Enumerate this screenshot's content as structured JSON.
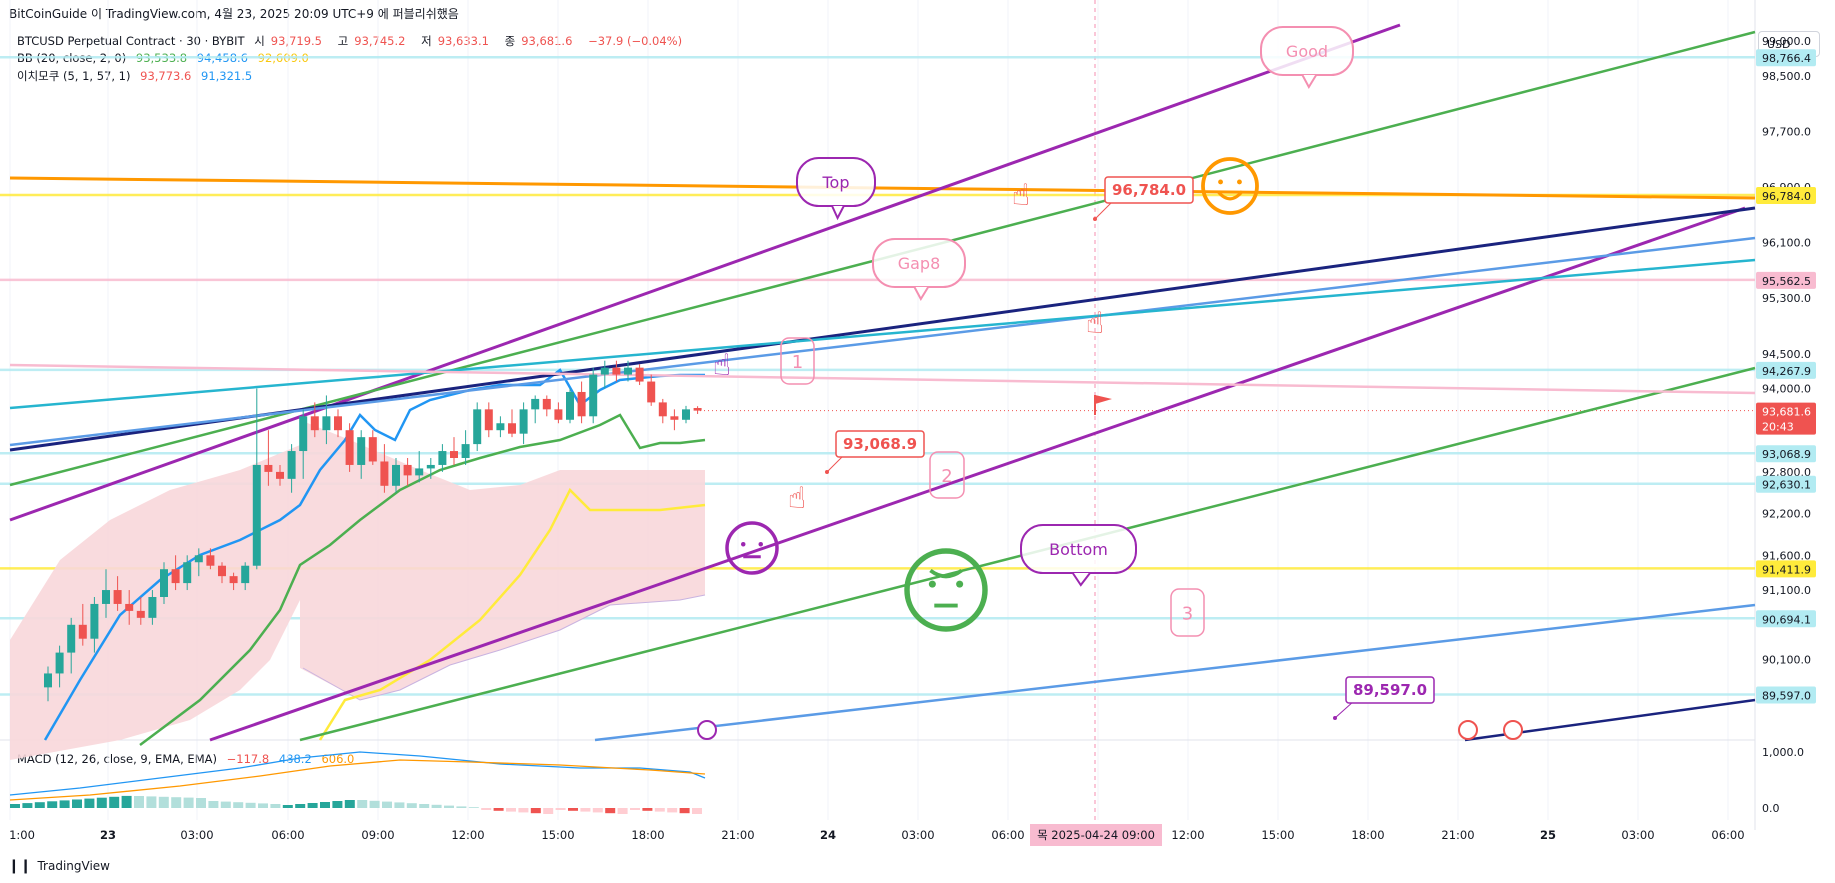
{
  "header": {
    "caption": "BitCoinGuide 이 TradingView.com, 4월 23, 2025 20:09 UTC+9 에 퍼블리쉬했음",
    "symbol": "BTCUSD Perpetual Contract · 30 · BYBIT",
    "ohlc": [
      {
        "label": "시",
        "value": "93,719.5"
      },
      {
        "label": "고",
        "value": "93,745.2"
      },
      {
        "label": "저",
        "value": "93,633.1"
      },
      {
        "label": "종",
        "value": "93,681.6"
      }
    ],
    "change": "−37.9 (−0.04%)",
    "bb_label": "BB (20, close, 2, 0)",
    "bb_values": [
      "93,533.8",
      "94,458.6",
      "92,609.0"
    ],
    "ichimoku_label": "이치모쿠 (5, 1, 57, 1)",
    "ichimoku_values": [
      "93,773.6",
      "91,321.5"
    ],
    "macd_label": "MACD (12, 26, close, 9, EMA, EMA)",
    "macd_values": [
      "−117.8",
      "488.2",
      "606.0"
    ],
    "currency": "USD"
  },
  "footer": {
    "brand": "TradingView"
  },
  "colors": {
    "up": "#26a69a",
    "down": "#ef5350",
    "bb_basis": "#4caf50",
    "bb_upper": "#2196f3",
    "bb_lower": "#ffeb3b",
    "cloud": "#f8d7da",
    "orange": "#ff9800",
    "purple": "#9c27b0",
    "navy": "#1a237e",
    "lightblue": "#5b9be6",
    "cyan": "#26b5cf",
    "green": "#4caf50",
    "pink": "#f48fb1"
  },
  "chart_data": {
    "type": "candlestick",
    "title": "BTCUSD Perpetual Contract · 30 · BYBIT",
    "y_ticks": [
      "99,000.0",
      "98,500.0",
      "97,700.0",
      "96,900.0",
      "96,100.0",
      "95,300.0",
      "94,500.0",
      "94,000.0",
      "92,800.0",
      "92,200.0",
      "91,600.0",
      "91,100.0",
      "90,100.0"
    ],
    "x_ticks": [
      "1:00",
      "23",
      "03:00",
      "06:00",
      "09:00",
      "12:00",
      "15:00",
      "18:00",
      "21:00",
      "24",
      "03:00",
      "06:00",
      "09:00",
      "12:00",
      "15:00",
      "18:00",
      "21:00",
      "25",
      "03:00",
      "06:00"
    ],
    "crosshair_date": "목 2025-04-24  09:00",
    "price_labels": [
      {
        "text": "98,766.4",
        "price": 98766.4,
        "color": "#b2ebf2",
        "fg": "#131722"
      },
      {
        "text": "96,784.0",
        "price": 96784.0,
        "color": "#ffeb3b",
        "fg": "#131722"
      },
      {
        "text": "95,562.5",
        "price": 95562.5,
        "color": "#f8bbd0",
        "fg": "#131722"
      },
      {
        "text": "94,267.9",
        "price": 94267.9,
        "color": "#b2ebf2",
        "fg": "#131722"
      },
      {
        "text": "93,681.6",
        "price": 93681.6,
        "color": "#ef5350",
        "fg": "#ffffff"
      },
      {
        "text": "93,068.9",
        "price": 93068.9,
        "color": "#b2ebf2",
        "fg": "#131722"
      },
      {
        "text": "92,630.1",
        "price": 92630.1,
        "color": "#b2ebf2",
        "fg": "#131722"
      },
      {
        "text": "91,411.9",
        "price": 91411.9,
        "color": "#ffeb3b",
        "fg": "#131722"
      },
      {
        "text": "90,694.1",
        "price": 90694.1,
        "color": "#b2ebf2",
        "fg": "#131722"
      },
      {
        "text": "89,597.0",
        "price": 89597.0,
        "color": "#b2ebf2",
        "fg": "#131722"
      }
    ],
    "countdown": "20:43",
    "macd_ticks": [
      "1,000.0",
      "0.0"
    ],
    "candles": [
      {
        "o": 89700,
        "h": 90000,
        "l": 89500,
        "c": 89900
      },
      {
        "o": 89900,
        "h": 90300,
        "l": 89700,
        "c": 90200
      },
      {
        "o": 90200,
        "h": 90700,
        "l": 89900,
        "c": 90600
      },
      {
        "o": 90600,
        "h": 90900,
        "l": 90300,
        "c": 90400
      },
      {
        "o": 90400,
        "h": 91000,
        "l": 90200,
        "c": 90900
      },
      {
        "o": 90900,
        "h": 91400,
        "l": 90700,
        "c": 91100
      },
      {
        "o": 91100,
        "h": 91300,
        "l": 90800,
        "c": 90900
      },
      {
        "o": 90900,
        "h": 91100,
        "l": 90600,
        "c": 90800
      },
      {
        "o": 90800,
        "h": 91000,
        "l": 90600,
        "c": 90700
      },
      {
        "o": 90700,
        "h": 91100,
        "l": 90600,
        "c": 91000
      },
      {
        "o": 91000,
        "h": 91500,
        "l": 90900,
        "c": 91400
      },
      {
        "o": 91400,
        "h": 91600,
        "l": 91100,
        "c": 91200
      },
      {
        "o": 91200,
        "h": 91600,
        "l": 91100,
        "c": 91500
      },
      {
        "o": 91500,
        "h": 91700,
        "l": 91300,
        "c": 91600
      },
      {
        "o": 91600,
        "h": 91700,
        "l": 91400,
        "c": 91450
      },
      {
        "o": 91450,
        "h": 91500,
        "l": 91200,
        "c": 91300
      },
      {
        "o": 91300,
        "h": 91350,
        "l": 91100,
        "c": 91200
      },
      {
        "o": 91200,
        "h": 91500,
        "l": 91100,
        "c": 91450
      },
      {
        "o": 91450,
        "h": 94000,
        "l": 91400,
        "c": 92900
      },
      {
        "o": 92900,
        "h": 93400,
        "l": 92600,
        "c": 92800
      },
      {
        "o": 92800,
        "h": 92900,
        "l": 92600,
        "c": 92700
      },
      {
        "o": 92700,
        "h": 93200,
        "l": 92500,
        "c": 93100
      },
      {
        "o": 93100,
        "h": 93700,
        "l": 92700,
        "c": 93600
      },
      {
        "o": 93600,
        "h": 93800,
        "l": 93300,
        "c": 93400
      },
      {
        "o": 93400,
        "h": 93900,
        "l": 93200,
        "c": 93600
      },
      {
        "o": 93600,
        "h": 93700,
        "l": 93300,
        "c": 93400
      },
      {
        "o": 93400,
        "h": 93500,
        "l": 92800,
        "c": 92900
      },
      {
        "o": 92900,
        "h": 93400,
        "l": 92700,
        "c": 93300
      },
      {
        "o": 93300,
        "h": 93400,
        "l": 92900,
        "c": 92950
      },
      {
        "o": 92950,
        "h": 93200,
        "l": 92500,
        "c": 92600
      },
      {
        "o": 92600,
        "h": 93000,
        "l": 92500,
        "c": 92900
      },
      {
        "o": 92900,
        "h": 93000,
        "l": 92600,
        "c": 92750
      },
      {
        "o": 92750,
        "h": 93100,
        "l": 92650,
        "c": 92850
      },
      {
        "o": 92850,
        "h": 93000,
        "l": 92700,
        "c": 92900
      },
      {
        "o": 92900,
        "h": 93200,
        "l": 92800,
        "c": 93100
      },
      {
        "o": 93100,
        "h": 93300,
        "l": 92900,
        "c": 93000
      },
      {
        "o": 93000,
        "h": 93400,
        "l": 92900,
        "c": 93200
      },
      {
        "o": 93200,
        "h": 93800,
        "l": 93100,
        "c": 93700
      },
      {
        "o": 93700,
        "h": 93800,
        "l": 93300,
        "c": 93400
      },
      {
        "o": 93400,
        "h": 93600,
        "l": 93300,
        "c": 93500
      },
      {
        "o": 93500,
        "h": 93700,
        "l": 93300,
        "c": 93350
      },
      {
        "o": 93350,
        "h": 93800,
        "l": 93200,
        "c": 93700
      },
      {
        "o": 93700,
        "h": 93900,
        "l": 93500,
        "c": 93850
      },
      {
        "o": 93850,
        "h": 93900,
        "l": 93600,
        "c": 93700
      },
      {
        "o": 93700,
        "h": 93800,
        "l": 93500,
        "c": 93550
      },
      {
        "o": 93550,
        "h": 94000,
        "l": 93500,
        "c": 93950
      },
      {
        "o": 93950,
        "h": 94100,
        "l": 93500,
        "c": 93600
      },
      {
        "o": 93600,
        "h": 94300,
        "l": 93500,
        "c": 94200
      },
      {
        "o": 94200,
        "h": 94400,
        "l": 94000,
        "c": 94300
      },
      {
        "o": 94300,
        "h": 94400,
        "l": 94100,
        "c": 94200
      },
      {
        "o": 94200,
        "h": 94400,
        "l": 94100,
        "c": 94300
      },
      {
        "o": 94300,
        "h": 94350,
        "l": 94050,
        "c": 94100
      },
      {
        "o": 94100,
        "h": 94200,
        "l": 93750,
        "c": 93800
      },
      {
        "o": 93800,
        "h": 93850,
        "l": 93500,
        "c": 93600
      },
      {
        "o": 93600,
        "h": 93700,
        "l": 93400,
        "c": 93550
      },
      {
        "o": 93550,
        "h": 93750,
        "l": 93500,
        "c": 93700
      },
      {
        "o": 93719.5,
        "h": 93745.2,
        "l": 93633.1,
        "c": 93681.6
      }
    ]
  },
  "annotations": {
    "top": "Top",
    "good": "Good",
    "gap8": "Gap8",
    "bottom": "Bottom",
    "n1": "1",
    "n2": "2",
    "n3": "3",
    "callout_96784": "96,784.0",
    "callout_93068": "93,068.9",
    "callout_89597": "89,597.0"
  }
}
